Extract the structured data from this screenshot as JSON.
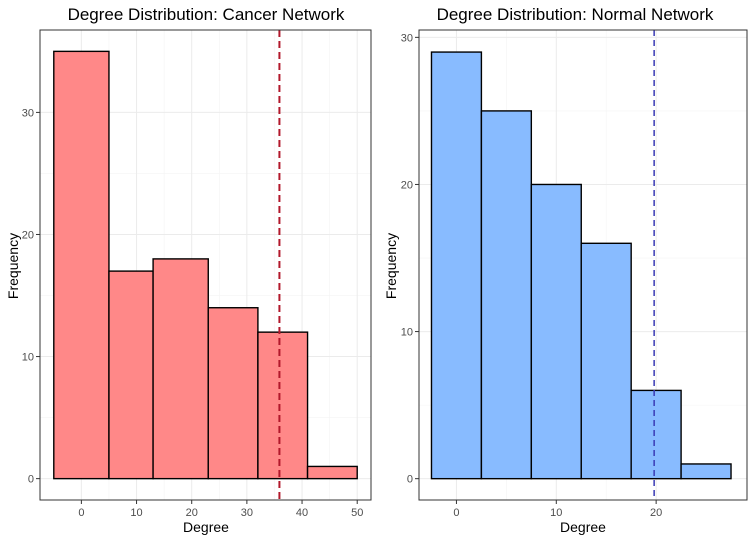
{
  "chart_data": [
    {
      "type": "bar",
      "title": "Degree Distribution: Cancer Network",
      "xlabel": "Degree",
      "ylabel": "Frequency",
      "xlim": [
        -7.5,
        52.5
      ],
      "ylim": [
        -1.75,
        36.75
      ],
      "x_ticks": [
        0,
        10,
        20,
        30,
        40,
        50
      ],
      "y_ticks": [
        0,
        10,
        20,
        30
      ],
      "bins": [
        {
          "start": -5,
          "end": 5,
          "value": 35
        },
        {
          "start": 5,
          "end": 13,
          "value": 17
        },
        {
          "start": 13,
          "end": 23,
          "value": 18
        },
        {
          "start": 23,
          "end": 32,
          "value": 14
        },
        {
          "start": 32,
          "end": 41,
          "value": 12
        },
        {
          "start": 41,
          "end": 50,
          "value": 1
        }
      ],
      "reference_line": 35.9,
      "fill_color": "#ff8888",
      "line_color": "#b2182b",
      "grid": true
    },
    {
      "type": "bar",
      "title": "Degree Distribution: Normal Network",
      "xlabel": "Degree",
      "ylabel": "Frequency",
      "xlim": [
        -3.75,
        29.1
      ],
      "ylim": [
        -1.45,
        30.5
      ],
      "x_ticks": [
        0,
        10,
        20
      ],
      "y_ticks": [
        0,
        10,
        20,
        30
      ],
      "bins": [
        {
          "start": -2.5,
          "end": 2.5,
          "value": 29
        },
        {
          "start": 2.5,
          "end": 7.5,
          "value": 25
        },
        {
          "start": 7.5,
          "end": 12.5,
          "value": 20
        },
        {
          "start": 12.5,
          "end": 17.5,
          "value": 16
        },
        {
          "start": 17.5,
          "end": 22.5,
          "value": 6
        },
        {
          "start": 22.5,
          "end": 27.5,
          "value": 1
        }
      ],
      "reference_line": 19.8,
      "fill_color": "#88bbff",
      "line_color": "#3a3ab4",
      "grid": true
    }
  ]
}
